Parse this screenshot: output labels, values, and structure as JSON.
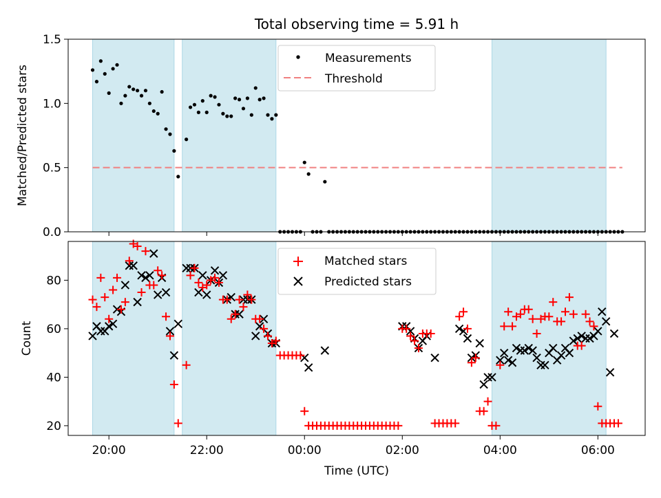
{
  "colors": {
    "shade": "#add8e6",
    "measurement": "#000000",
    "threshold": "#f08080",
    "matched": "#ff0000",
    "predicted": "#000000"
  },
  "chart_data": [
    {
      "type": "scatter",
      "title": "Total observing time = 5.91 h",
      "xlabel": "",
      "ylabel": "Matched/Predicted stars",
      "ylim": [
        0,
        1.5
      ],
      "yticks": [
        "0.0",
        "0.5",
        "1.0",
        "1.5"
      ],
      "legend": {
        "placement": "top-center",
        "entries": [
          "Measurements",
          "Threshold"
        ]
      },
      "threshold": 0.5,
      "shaded_intervals": [
        [
          "19:40",
          "21:20"
        ],
        [
          "21:30",
          "23:25"
        ],
        [
          "03:50",
          "06:10"
        ]
      ],
      "series": [
        {
          "name": "Measurements",
          "x": [
            "19:40",
            "19:45",
            "19:50",
            "19:55",
            "20:00",
            "20:05",
            "20:10",
            "20:15",
            "20:20",
            "20:25",
            "20:30",
            "20:35",
            "20:40",
            "20:45",
            "20:50",
            "20:55",
            "21:00",
            "21:05",
            "21:10",
            "21:15",
            "21:20",
            "21:25",
            "21:35",
            "21:40",
            "21:45",
            "21:50",
            "21:55",
            "22:00",
            "22:05",
            "22:10",
            "22:15",
            "22:20",
            "22:25",
            "22:30",
            "22:35",
            "22:40",
            "22:45",
            "22:50",
            "22:55",
            "23:00",
            "23:05",
            "23:10",
            "23:15",
            "23:20",
            "23:25",
            "23:30",
            "23:35",
            "23:40",
            "23:45",
            "23:50",
            "23:55",
            "00:00",
            "00:05",
            "00:10",
            "00:15",
            "00:20",
            "00:25",
            "00:30",
            "00:35",
            "00:40",
            "00:45",
            "00:50",
            "00:55",
            "01:00",
            "01:05",
            "01:10",
            "01:15",
            "01:20",
            "01:25",
            "01:30",
            "01:35",
            "01:40",
            "01:45",
            "01:50",
            "01:55",
            "02:00",
            "02:05",
            "02:10",
            "02:15",
            "02:20",
            "02:25",
            "02:30",
            "02:35",
            "02:40",
            "02:45",
            "02:50",
            "02:55",
            "03:00",
            "03:05",
            "03:10",
            "03:15",
            "03:20",
            "03:25",
            "03:30",
            "03:35",
            "03:40",
            "03:45",
            "03:50",
            "03:55",
            "04:00",
            "04:05",
            "04:10",
            "04:15",
            "04:20",
            "04:25",
            "04:30",
            "04:35",
            "04:40",
            "04:45",
            "04:50",
            "04:55",
            "05:00",
            "05:05",
            "05:10",
            "05:15",
            "05:20",
            "05:25",
            "05:30",
            "05:35",
            "05:40",
            "05:45",
            "05:50",
            "05:55",
            "06:00",
            "06:05",
            "06:10",
            "06:15",
            "06:20",
            "06:25",
            "06:30"
          ],
          "values": [
            1.26,
            1.17,
            1.33,
            1.23,
            1.08,
            1.27,
            1.3,
            1.0,
            1.06,
            1.13,
            1.11,
            1.1,
            1.06,
            1.1,
            1.0,
            0.94,
            0.92,
            1.09,
            0.8,
            0.76,
            0.63,
            0.43,
            0.72,
            0.97,
            0.99,
            0.93,
            1.02,
            0.93,
            1.06,
            1.05,
            0.99,
            0.92,
            0.9,
            0.9,
            1.04,
            1.03,
            0.96,
            1.04,
            0.91,
            1.12,
            1.03,
            1.04,
            0.91,
            0.88,
            0.91,
            0.0,
            0.0,
            0.0,
            0.0,
            0.0,
            0.0,
            0.54,
            0.45,
            0.0,
            0.0,
            0.0,
            0.39,
            0.0,
            0.0,
            0.0,
            0.0,
            0.0,
            0.0,
            0.0,
            0.0,
            0.0,
            0.0,
            0.0,
            0.0,
            0.0,
            0.0,
            0.0,
            0.0,
            0.0,
            0.0,
            0.0,
            0.0,
            0.0,
            0.0,
            0.0,
            0.0,
            0.0,
            0.0,
            0.0,
            0.0,
            0.0,
            0.0,
            0.0,
            0.0,
            0.0,
            0.0,
            0.0,
            0.0,
            0.0,
            0.0,
            0.0,
            0.0,
            0.0,
            0.0,
            0.0,
            0.0,
            0.0,
            0.0,
            0.0,
            0.0,
            0.0,
            0.0,
            0.0,
            0.0,
            0.0,
            0.0,
            0.0,
            0.0,
            0.0,
            0.0,
            0.0,
            0.0,
            0.0,
            0.0,
            0.0,
            0.0,
            0.0,
            0.0,
            0.0,
            0.0,
            0.0,
            0.0,
            0.0,
            0.0,
            0.0
          ]
        }
      ]
    },
    {
      "type": "scatter",
      "title": "",
      "xlabel": "Time (UTC)",
      "ylabel": "Count",
      "ylim": [
        16,
        96
      ],
      "yticks": [
        "20",
        "40",
        "60",
        "80"
      ],
      "xticks": [
        "20:00",
        "22:00",
        "00:00",
        "02:00",
        "04:00",
        "06:00"
      ],
      "legend": {
        "placement": "top-center",
        "entries": [
          "Matched stars",
          "Predicted stars"
        ]
      },
      "shaded_intervals": [
        [
          "19:40",
          "21:20"
        ],
        [
          "21:30",
          "23:25"
        ],
        [
          "03:50",
          "06:10"
        ]
      ],
      "series": [
        {
          "name": "Matched stars",
          "x": [],
          "values": []
        },
        {
          "name": "Predicted stars",
          "x": [],
          "values": []
        }
      ]
    }
  ]
}
